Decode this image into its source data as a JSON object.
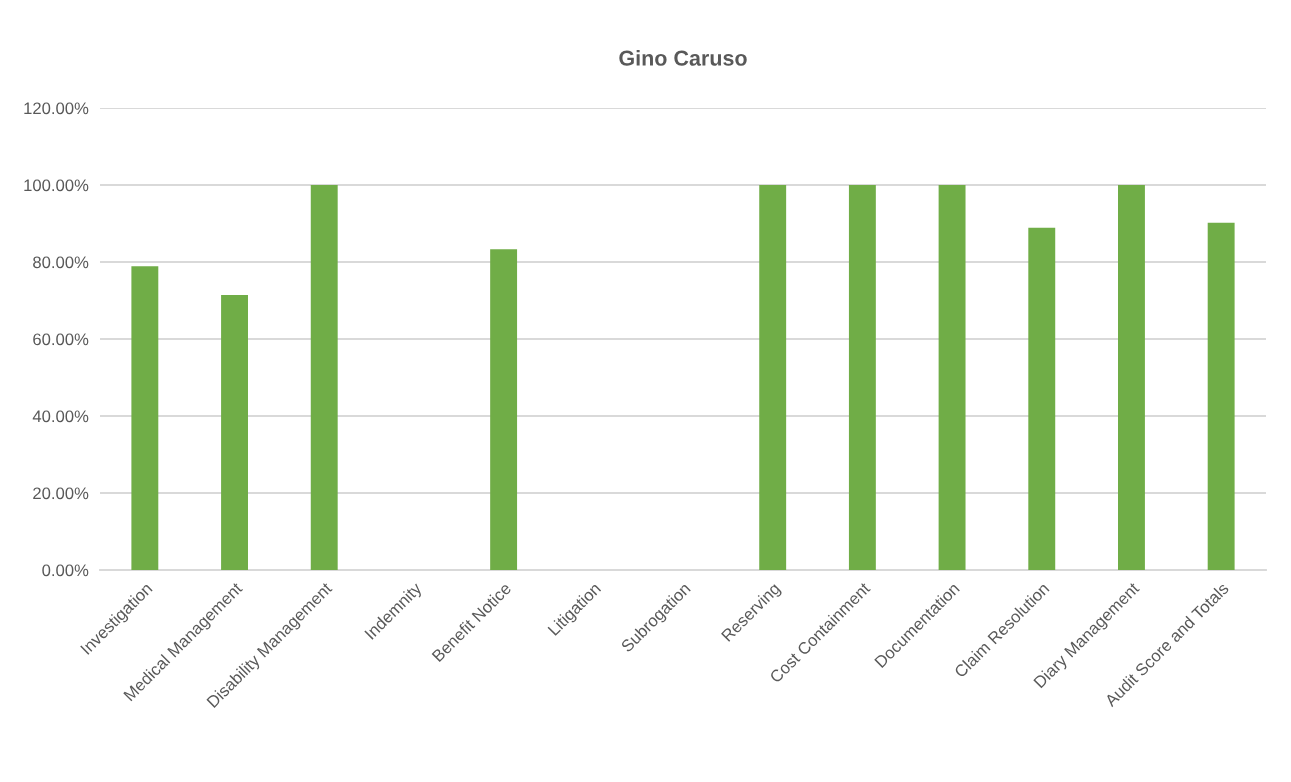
{
  "chart_data": {
    "type": "bar",
    "title": "Gino Caruso",
    "categories": [
      "Investigation",
      "Medical Management",
      "Disability Management",
      "Indemnity",
      "Benefit Notice",
      "Litigation",
      "Subrogation",
      "Reserving",
      "Cost Containment",
      "Documentation",
      "Claim Resolution",
      "Diary Management",
      "Audit Score and Totals"
    ],
    "values": [
      78.9,
      71.4,
      100,
      null,
      83.3,
      null,
      null,
      100,
      100,
      100,
      88.9,
      100,
      90.2
    ],
    "color": "#70ad47",
    "ylim": [
      0,
      120
    ],
    "yticks": [
      {
        "value": 0,
        "label": "0.00%"
      },
      {
        "value": 20,
        "label": "20.00%"
      },
      {
        "value": 40,
        "label": "40.00%"
      },
      {
        "value": 60,
        "label": "60.00%"
      },
      {
        "value": 80,
        "label": "80.00%"
      },
      {
        "value": 100,
        "label": "100.00%"
      },
      {
        "value": 120,
        "label": "120.00%"
      }
    ],
    "grid": "y"
  }
}
